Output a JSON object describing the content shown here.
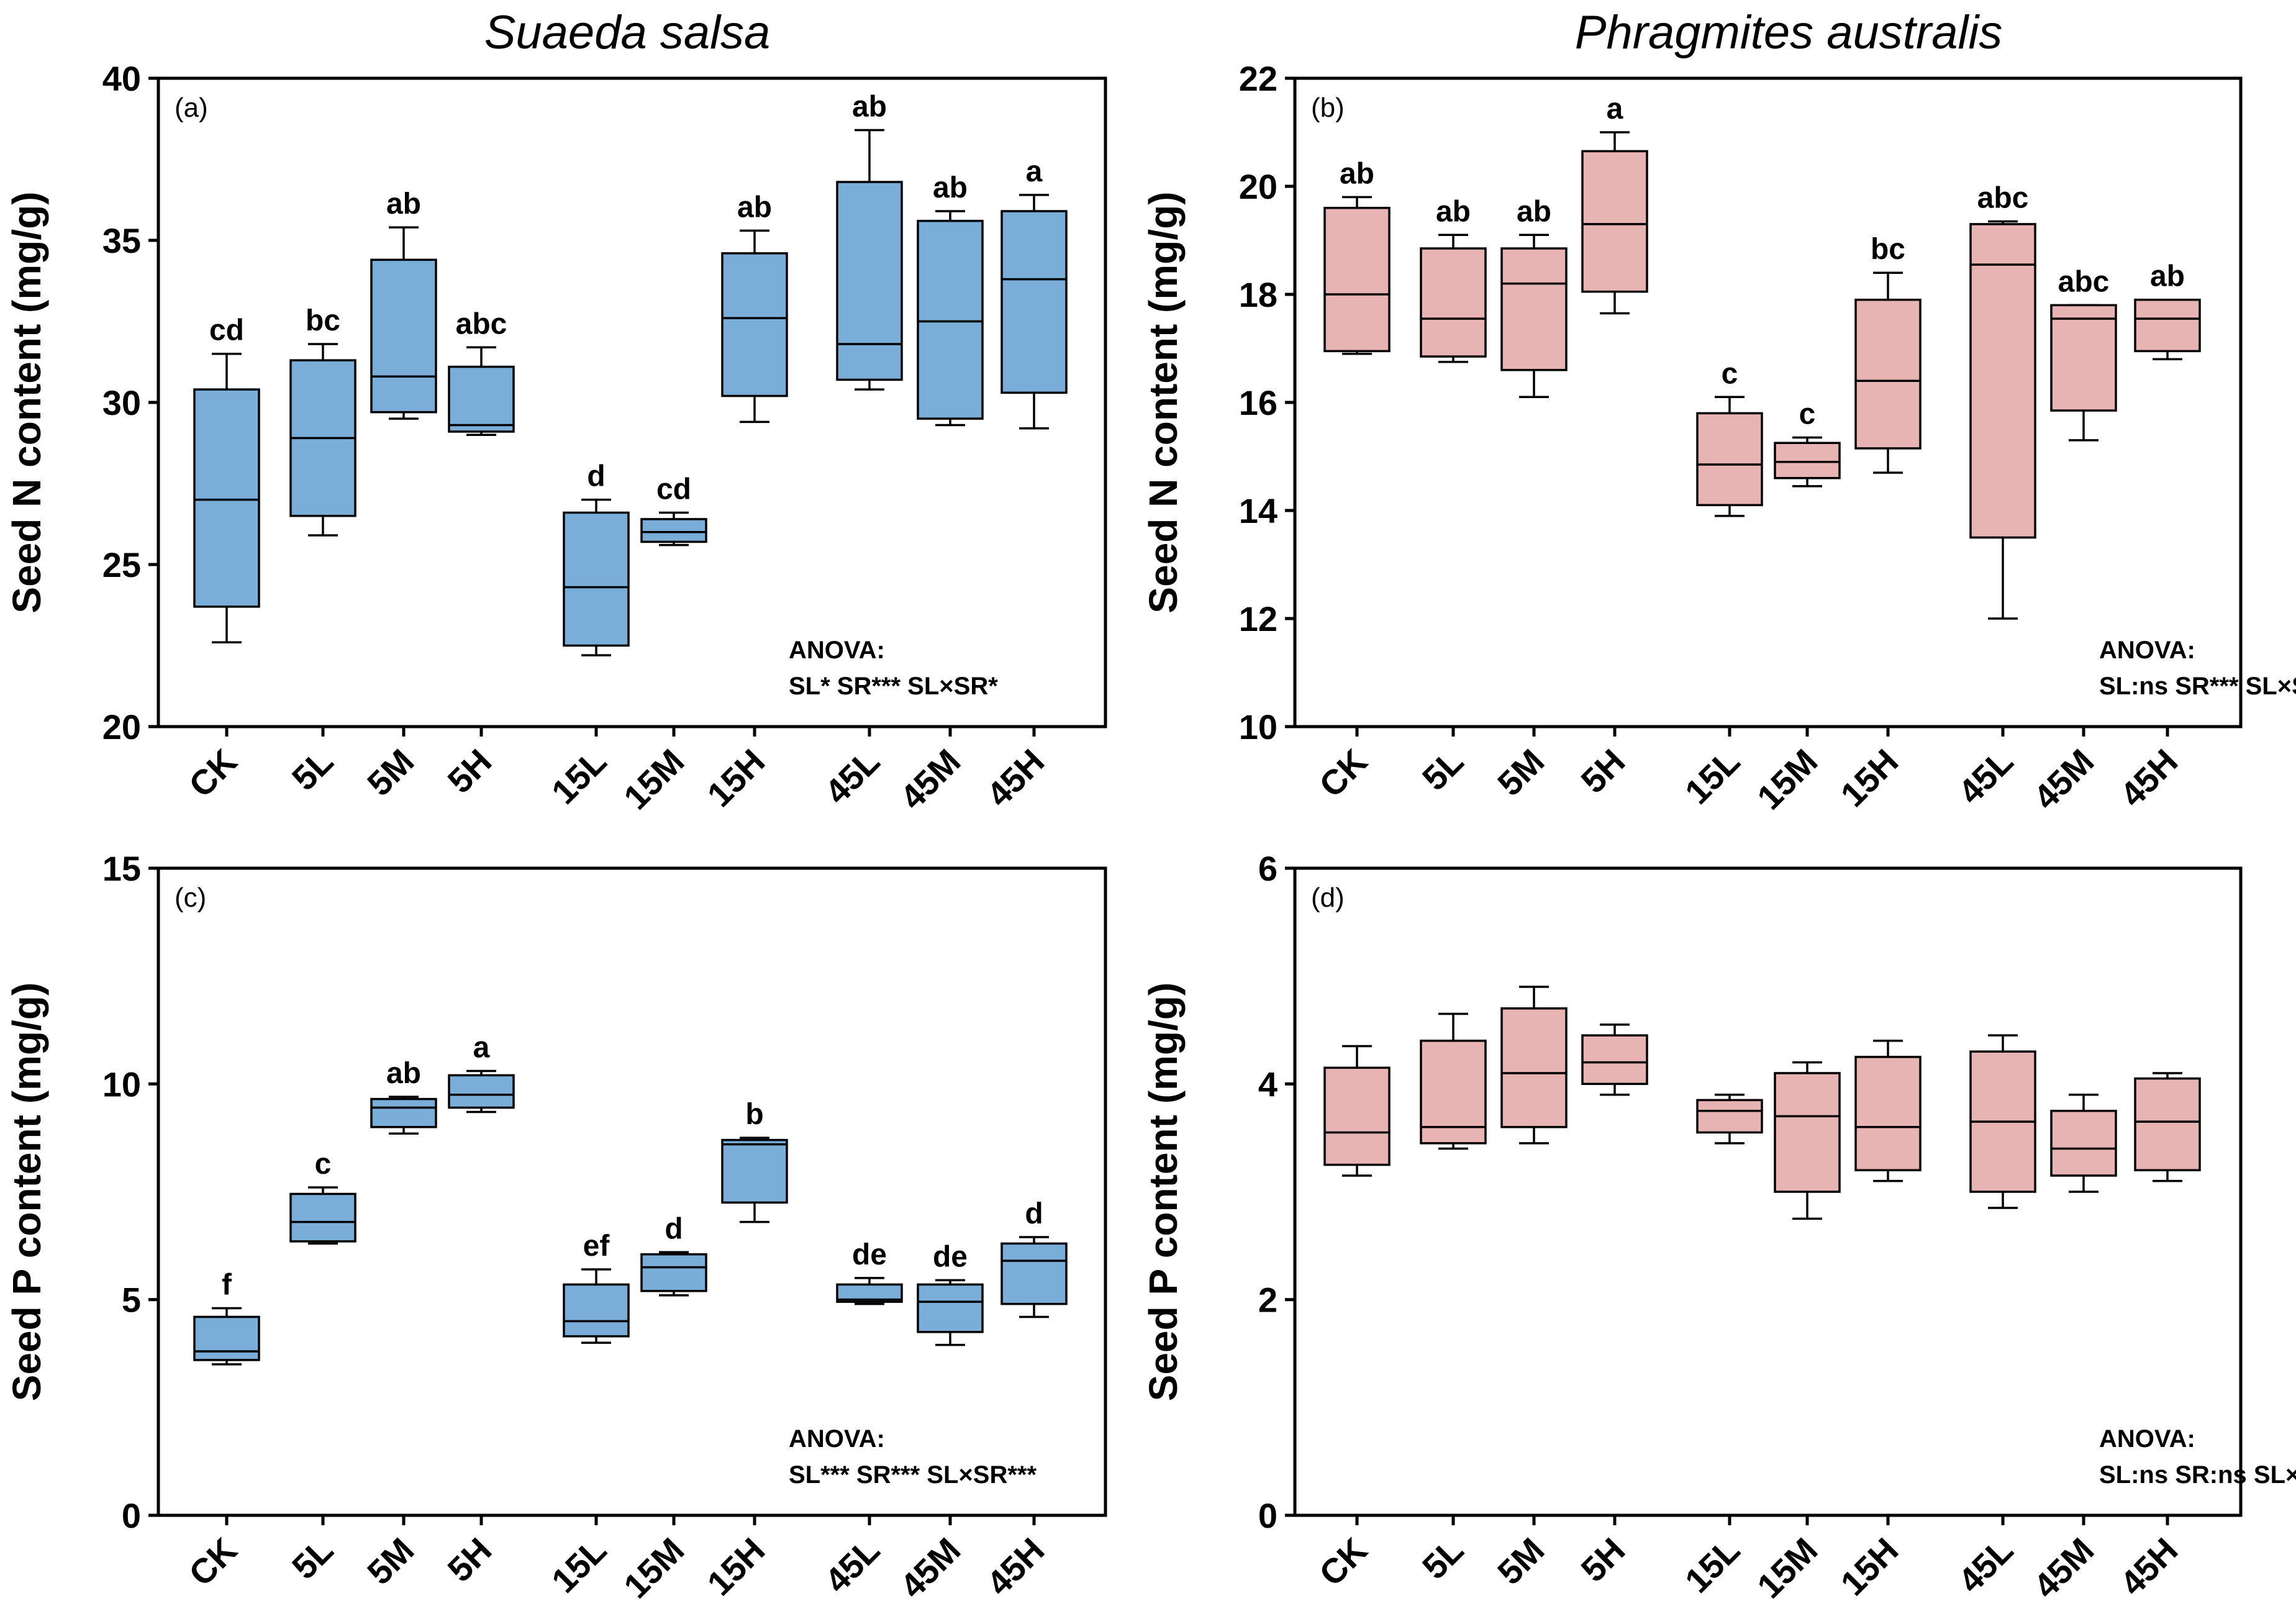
{
  "column_titles": [
    "Suaeda salsa",
    "Phragmites australis"
  ],
  "colors": {
    "suaeda": "#7aadd8",
    "phragmites": "#e8b3b3",
    "stroke": "#000000"
  },
  "chart_data": [
    {
      "type": "box",
      "panel_label": "(a)",
      "species": "Suaeda salsa",
      "ylabel": "Seed N content (mg/g)",
      "ylim": [
        20,
        40
      ],
      "yticks": [
        "20",
        "25",
        "30",
        "35",
        "40"
      ],
      "categories": [
        "CK",
        "5L",
        "5M",
        "5H",
        "15L",
        "15M",
        "15H",
        "45L",
        "45M",
        "45H"
      ],
      "boxes": [
        {
          "min": 22.6,
          "q1": 23.7,
          "median": 27.0,
          "q3": 30.4,
          "max": 31.5
        },
        {
          "min": 25.9,
          "q1": 26.5,
          "median": 28.9,
          "q3": 31.3,
          "max": 31.8
        },
        {
          "min": 29.5,
          "q1": 29.7,
          "median": 30.8,
          "q3": 34.4,
          "max": 35.4
        },
        {
          "min": 29.0,
          "q1": 29.1,
          "median": 29.3,
          "q3": 31.1,
          "max": 31.7
        },
        {
          "min": 22.2,
          "q1": 22.5,
          "median": 24.3,
          "q3": 26.6,
          "max": 27.0
        },
        {
          "min": 25.6,
          "q1": 25.7,
          "median": 26.0,
          "q3": 26.4,
          "max": 26.6
        },
        {
          "min": 29.4,
          "q1": 30.2,
          "median": 32.6,
          "q3": 34.6,
          "max": 35.3
        },
        {
          "min": 30.4,
          "q1": 30.7,
          "median": 31.8,
          "q3": 36.8,
          "max": 38.4
        },
        {
          "min": 29.3,
          "q1": 29.5,
          "median": 32.5,
          "q3": 35.6,
          "max": 35.9
        },
        {
          "min": 29.2,
          "q1": 30.3,
          "median": 33.8,
          "q3": 35.9,
          "max": 36.4
        }
      ],
      "letters": [
        "cd",
        "bc",
        "ab",
        "abc",
        "d",
        "cd",
        "ab",
        "ab",
        "ab",
        "a"
      ],
      "anova": [
        "ANOVA:",
        "SL* SR*** SL×SR*"
      ]
    },
    {
      "type": "box",
      "panel_label": "(b)",
      "species": "Phragmites australis",
      "ylabel": "Seed N content (mg/g)",
      "ylim": [
        10,
        22
      ],
      "yticks": [
        "10",
        "12",
        "14",
        "16",
        "18",
        "20",
        "22"
      ],
      "categories": [
        "CK",
        "5L",
        "5M",
        "5H",
        "15L",
        "15M",
        "15H",
        "45L",
        "45M",
        "45H"
      ],
      "boxes": [
        {
          "min": 16.9,
          "q1": 16.95,
          "median": 18.0,
          "q3": 19.6,
          "max": 19.8
        },
        {
          "min": 16.75,
          "q1": 16.85,
          "median": 17.55,
          "q3": 18.85,
          "max": 19.1
        },
        {
          "min": 16.1,
          "q1": 16.6,
          "median": 18.2,
          "q3": 18.85,
          "max": 19.1
        },
        {
          "min": 17.65,
          "q1": 18.05,
          "median": 19.3,
          "q3": 20.65,
          "max": 21.0
        },
        {
          "min": 13.9,
          "q1": 14.1,
          "median": 14.85,
          "q3": 15.8,
          "max": 16.1
        },
        {
          "min": 14.45,
          "q1": 14.6,
          "median": 14.9,
          "q3": 15.25,
          "max": 15.35
        },
        {
          "min": 14.7,
          "q1": 15.15,
          "median": 16.4,
          "q3": 17.9,
          "max": 18.4
        },
        {
          "min": 12.0,
          "q1": 13.5,
          "median": 18.55,
          "q3": 19.3,
          "max": 19.35
        },
        {
          "min": 15.3,
          "q1": 15.85,
          "median": 17.55,
          "q3": 17.8,
          "max": 17.8
        },
        {
          "min": 16.8,
          "q1": 16.95,
          "median": 17.55,
          "q3": 17.9,
          "max": 17.9
        }
      ],
      "letters": [
        "ab",
        "ab",
        "ab",
        "a",
        "c",
        "c",
        "bc",
        "abc",
        "abc",
        "ab"
      ],
      "anova": [
        "ANOVA:",
        "SL:ns SR*** SL×SR:ns"
      ]
    },
    {
      "type": "box",
      "panel_label": "(c)",
      "species": "Suaeda salsa",
      "ylabel": "Seed P content (mg/g)",
      "ylim": [
        0,
        15
      ],
      "yticks": [
        "0",
        "5",
        "10",
        "15"
      ],
      "categories": [
        "CK",
        "5L",
        "5M",
        "5H",
        "15L",
        "15M",
        "15H",
        "45L",
        "45M",
        "45H"
      ],
      "boxes": [
        {
          "min": 3.5,
          "q1": 3.6,
          "median": 3.8,
          "q3": 4.6,
          "max": 4.8
        },
        {
          "min": 6.3,
          "q1": 6.35,
          "median": 6.8,
          "q3": 7.45,
          "max": 7.6
        },
        {
          "min": 8.85,
          "q1": 9.0,
          "median": 9.45,
          "q3": 9.65,
          "max": 9.7
        },
        {
          "min": 9.35,
          "q1": 9.45,
          "median": 9.75,
          "q3": 10.2,
          "max": 10.3
        },
        {
          "min": 4.0,
          "q1": 4.15,
          "median": 4.5,
          "q3": 5.35,
          "max": 5.7
        },
        {
          "min": 5.1,
          "q1": 5.2,
          "median": 5.75,
          "q3": 6.05,
          "max": 6.1
        },
        {
          "min": 6.8,
          "q1": 7.25,
          "median": 8.6,
          "q3": 8.7,
          "max": 8.75
        },
        {
          "min": 4.9,
          "q1": 4.95,
          "median": 5.0,
          "q3": 5.35,
          "max": 5.5
        },
        {
          "min": 3.95,
          "q1": 4.25,
          "median": 4.95,
          "q3": 5.35,
          "max": 5.45
        },
        {
          "min": 4.6,
          "q1": 4.9,
          "median": 5.9,
          "q3": 6.3,
          "max": 6.45
        }
      ],
      "letters": [
        "f",
        "c",
        "ab",
        "a",
        "ef",
        "d",
        "b",
        "de",
        "de",
        "d"
      ],
      "anova": [
        "ANOVA:",
        "SL*** SR*** SL×SR***"
      ]
    },
    {
      "type": "box",
      "panel_label": "(d)",
      "species": "Phragmites australis",
      "ylabel": "Seed P content (mg/g)",
      "ylim": [
        0,
        6
      ],
      "yticks": [
        "0",
        "2",
        "4",
        "6"
      ],
      "categories": [
        "CK",
        "5L",
        "5M",
        "5H",
        "15L",
        "15M",
        "15H",
        "45L",
        "45M",
        "45H"
      ],
      "boxes": [
        {
          "min": 3.15,
          "q1": 3.25,
          "median": 3.55,
          "q3": 4.15,
          "max": 4.35
        },
        {
          "min": 3.4,
          "q1": 3.45,
          "median": 3.6,
          "q3": 4.4,
          "max": 4.65
        },
        {
          "min": 3.45,
          "q1": 3.6,
          "median": 4.1,
          "q3": 4.7,
          "max": 4.9
        },
        {
          "min": 3.9,
          "q1": 4.0,
          "median": 4.2,
          "q3": 4.45,
          "max": 4.55
        },
        {
          "min": 3.45,
          "q1": 3.55,
          "median": 3.75,
          "q3": 3.85,
          "max": 3.9
        },
        {
          "min": 2.75,
          "q1": 3.0,
          "median": 3.7,
          "q3": 4.1,
          "max": 4.2
        },
        {
          "min": 3.1,
          "q1": 3.2,
          "median": 3.6,
          "q3": 4.25,
          "max": 4.4
        },
        {
          "min": 2.85,
          "q1": 3.0,
          "median": 3.65,
          "q3": 4.3,
          "max": 4.45
        },
        {
          "min": 3.0,
          "q1": 3.15,
          "median": 3.4,
          "q3": 3.75,
          "max": 3.9
        },
        {
          "min": 3.1,
          "q1": 3.2,
          "median": 3.65,
          "q3": 4.05,
          "max": 4.1
        }
      ],
      "letters": [],
      "anova": [
        "ANOVA:",
        "SL:ns SR:ns SL×SR:ns"
      ]
    }
  ]
}
